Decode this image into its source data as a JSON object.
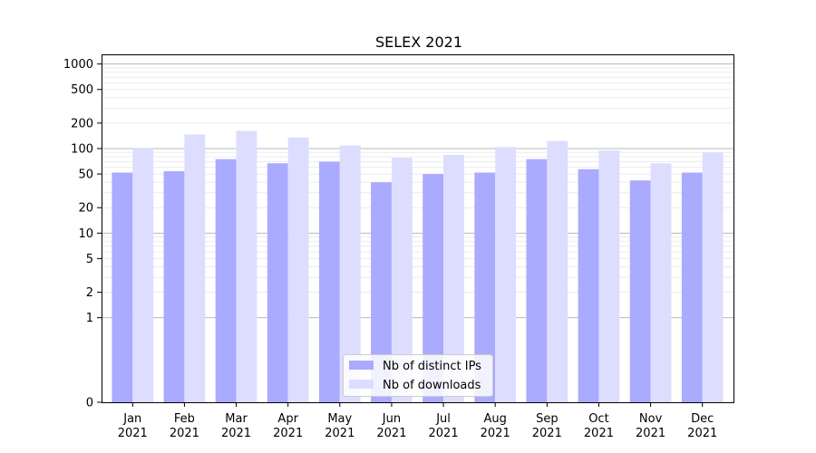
{
  "chart_data": {
    "type": "bar",
    "title": "SELEX 2021",
    "xlabel": "",
    "ylabel": "",
    "yscale": "symlog",
    "ylim": [
      0,
      1300
    ],
    "yticks": [
      0,
      1,
      2,
      5,
      10,
      20,
      50,
      100,
      200,
      500,
      1000
    ],
    "categories": [
      {
        "month": "Jan",
        "year": "2021"
      },
      {
        "month": "Feb",
        "year": "2021"
      },
      {
        "month": "Mar",
        "year": "2021"
      },
      {
        "month": "Apr",
        "year": "2021"
      },
      {
        "month": "May",
        "year": "2021"
      },
      {
        "month": "Jun",
        "year": "2021"
      },
      {
        "month": "Jul",
        "year": "2021"
      },
      {
        "month": "Aug",
        "year": "2021"
      },
      {
        "month": "Sep",
        "year": "2021"
      },
      {
        "month": "Oct",
        "year": "2021"
      },
      {
        "month": "Nov",
        "year": "2021"
      },
      {
        "month": "Dec",
        "year": "2021"
      }
    ],
    "series": [
      {
        "name": "Nb of distinct IPs",
        "color": "#aaaaff",
        "values": [
          52,
          54,
          75,
          67,
          70,
          40,
          50,
          52,
          75,
          57,
          42,
          52
        ]
      },
      {
        "name": "Nb of downloads",
        "color": "#ddddff",
        "values": [
          102,
          147,
          162,
          135,
          109,
          78,
          84,
          104,
          123,
          95,
          67,
          90
        ]
      }
    ],
    "grid": true,
    "legend": "bottom-center"
  }
}
